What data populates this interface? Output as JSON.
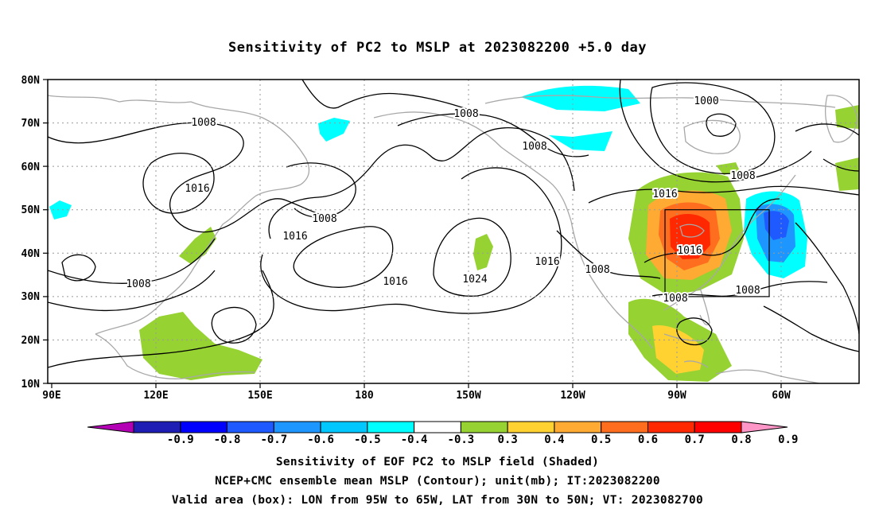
{
  "title": "Sensitivity of PC2 to MSLP at 2023082200 +5.0 day",
  "lat_labels": [
    "80N",
    "70N",
    "60N",
    "50N",
    "40N",
    "30N",
    "20N",
    "10N"
  ],
  "lon_labels": [
    "90E",
    "120E",
    "150E",
    "180",
    "150W",
    "120W",
    "90W",
    "60W"
  ],
  "contour_labels": [
    {
      "text": "1008",
      "name": "contour-label-1008-asia-north"
    },
    {
      "text": "1016",
      "name": "contour-label-1016-siberia"
    },
    {
      "text": "1008",
      "name": "contour-label-1008-south-asia"
    },
    {
      "text": "1008",
      "name": "contour-label-1008-bering"
    },
    {
      "text": "1016",
      "name": "contour-label-1016-nw-pacific"
    },
    {
      "text": "1008",
      "name": "contour-label-1008-arctic"
    },
    {
      "text": "1008",
      "name": "contour-label-1008-alaska"
    },
    {
      "text": "1016",
      "name": "contour-label-1016-pacific-high"
    },
    {
      "text": "1024",
      "name": "contour-label-1024-high-center"
    },
    {
      "text": "1016",
      "name": "contour-label-1016-west-coast"
    },
    {
      "text": "1000",
      "name": "contour-label-1000-hudson"
    },
    {
      "text": "1008",
      "name": "contour-label-1008-canada"
    },
    {
      "text": "1016",
      "name": "contour-label-1016-great-lakes"
    },
    {
      "text": "1008",
      "name": "contour-label-1008-sw-us"
    },
    {
      "text": "1016",
      "name": "contour-label-1016-box"
    },
    {
      "text": "1008",
      "name": "contour-label-1008-gulf"
    },
    {
      "text": "1008",
      "name": "contour-label-1008-atlantic"
    }
  ],
  "colorbar": {
    "labels": [
      "-0.9",
      "-0.8",
      "-0.7",
      "-0.6",
      "-0.5",
      "-0.4",
      "-0.3",
      "0.3",
      "0.4",
      "0.5",
      "0.6",
      "0.7",
      "0.8",
      "0.9"
    ],
    "colors": [
      "#b400b4",
      "#1e1eb4",
      "#0000ff",
      "#1e5aff",
      "#1e96ff",
      "#00c8ff",
      "#00ffff",
      "#ffffff",
      "#96d232",
      "#ffd232",
      "#ffaa32",
      "#ff6e1e",
      "#ff2800",
      "#ff0000",
      "#ff96c8"
    ]
  },
  "caption": {
    "line1": "Sensitivity of EOF PC2 to MSLP field (Shaded)",
    "line2": "NCEP+CMC ensemble mean MSLP (Contour); unit(mb); IT:2023082200",
    "line3": "Valid area (box): LON from 95W to 65W, LAT from 30N to 50N; VT: 2023082700"
  }
}
